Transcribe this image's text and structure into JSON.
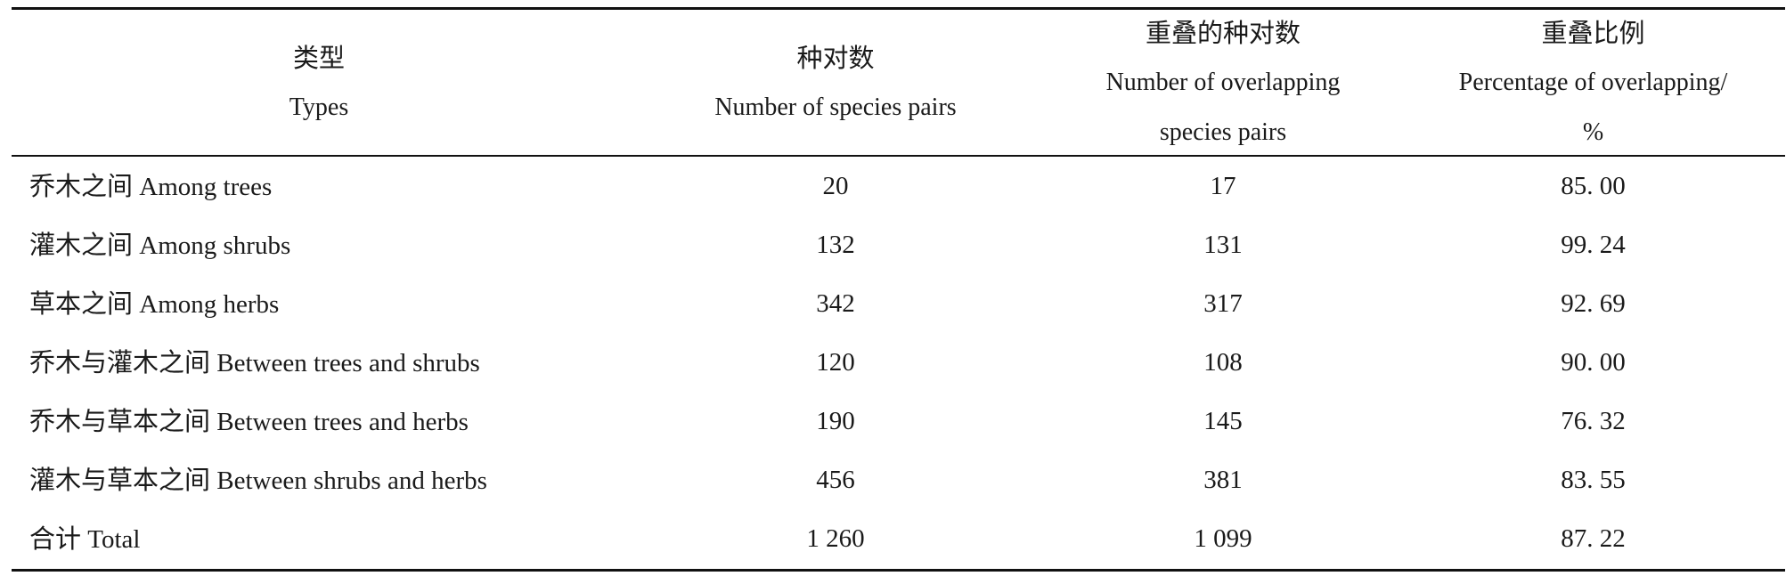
{
  "table": {
    "headers": [
      {
        "key": "type",
        "cn": "类型",
        "en_lines": [
          "Types"
        ]
      },
      {
        "key": "pairs",
        "cn": "种对数",
        "en_lines": [
          "Number of species pairs"
        ]
      },
      {
        "key": "overlap",
        "cn": "重叠的种对数",
        "en_lines": [
          "Number of overlapping",
          "species pairs"
        ]
      },
      {
        "key": "pct",
        "cn": "重叠比例",
        "en_lines": [
          "Percentage of overlapping/",
          "%"
        ]
      }
    ],
    "rows": [
      {
        "type_cn": "乔木之间",
        "type_en": "Among trees",
        "pairs": "20",
        "overlap": "17",
        "pct": "85. 00"
      },
      {
        "type_cn": "灌木之间",
        "type_en": "Among shrubs",
        "pairs": "132",
        "overlap": "131",
        "pct": "99. 24"
      },
      {
        "type_cn": "草本之间",
        "type_en": "Among herbs",
        "pairs": "342",
        "overlap": "317",
        "pct": "92. 69"
      },
      {
        "type_cn": "乔木与灌木之间",
        "type_en": "Between trees and shrubs",
        "pairs": "120",
        "overlap": "108",
        "pct": "90. 00"
      },
      {
        "type_cn": "乔木与草本之间",
        "type_en": "Between trees and herbs",
        "pairs": "190",
        "overlap": "145",
        "pct": "76. 32"
      },
      {
        "type_cn": "灌木与草本之间",
        "type_en": "Between shrubs and herbs",
        "pairs": "456",
        "overlap": "381",
        "pct": "83. 55"
      },
      {
        "type_cn": "合计",
        "type_en": "Total",
        "pairs": "1 260",
        "overlap": "1 099",
        "pct": "87. 22"
      }
    ]
  }
}
